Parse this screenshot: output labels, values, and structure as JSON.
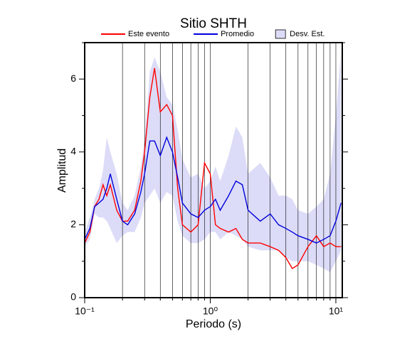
{
  "chart_data": {
    "type": "line",
    "title": "Sitio SHTH",
    "x_label": "Periodo (s)",
    "y_label": "Amplitud",
    "x_scale": "log",
    "xlim": [
      0.1,
      11.25
    ],
    "ylim": [
      0,
      7
    ],
    "xticks": [
      {
        "value": 0.1,
        "label": "10⁻¹"
      },
      {
        "value": 1,
        "label": "10⁰"
      },
      {
        "value": 10,
        "label": "10¹"
      }
    ],
    "xminorticks": [
      0.2,
      0.3,
      0.4,
      0.5,
      0.6,
      0.7,
      0.8,
      0.9,
      2,
      3,
      4,
      5,
      6,
      7,
      8,
      9
    ],
    "yticks": [
      0,
      2,
      4,
      6
    ],
    "yminorticks": [
      1,
      3,
      5,
      7
    ],
    "grid": true,
    "x": [
      0.1,
      0.11,
      0.12,
      0.13,
      0.14,
      0.15,
      0.16,
      0.18,
      0.2,
      0.22,
      0.25,
      0.28,
      0.3,
      0.33,
      0.36,
      0.4,
      0.45,
      0.5,
      0.55,
      0.6,
      0.7,
      0.8,
      0.9,
      1.0,
      1.1,
      1.2,
      1.4,
      1.6,
      1.8,
      2.0,
      2.5,
      3,
      3.5,
      4,
      4.5,
      5,
      6,
      7,
      8,
      9,
      10,
      11
    ],
    "band": {
      "name": "Desv. Est.",
      "color": "#dcdcf8",
      "upper": [
        1.8,
        2.2,
        2.7,
        3.0,
        3.5,
        4.4,
        4.0,
        3.4,
        2.6,
        2.4,
        2.8,
        3.6,
        4.3,
        6.2,
        6.6,
        6.2,
        5.5,
        5.3,
        4.6,
        3.8,
        3.3,
        3.4,
        3.0,
        3.2,
        3.6,
        3.2,
        3.9,
        4.7,
        4.4,
        3.4,
        3.7,
        3.3,
        2.8,
        2.8,
        2.7,
        2.4,
        2.3,
        2.5,
        2.7,
        3.4,
        5.0,
        6.8
      ],
      "lower": [
        1.4,
        1.6,
        2.3,
        2.2,
        2.2,
        2.1,
        1.9,
        1.5,
        1.7,
        1.8,
        1.8,
        2.2,
        2.6,
        2.8,
        3.0,
        2.6,
        2.9,
        2.8,
        2.1,
        1.7,
        1.5,
        1.5,
        1.6,
        1.8,
        1.8,
        1.6,
        1.8,
        1.7,
        1.6,
        1.4,
        1.3,
        1.3,
        1.3,
        1.1,
        1.0,
        1.0,
        1.0,
        0.9,
        0.8,
        0.7,
        1.0,
        1.3
      ]
    },
    "series": [
      {
        "name": "Este evento",
        "color": "#ff0000",
        "values": [
          1.5,
          1.8,
          2.5,
          2.7,
          3.1,
          2.8,
          3.1,
          2.4,
          2.1,
          2.1,
          2.4,
          3.2,
          4.0,
          5.5,
          6.3,
          5.1,
          5.3,
          5.0,
          3.0,
          2.0,
          1.8,
          2.0,
          3.7,
          3.4,
          2.0,
          1.9,
          1.8,
          1.9,
          1.6,
          1.5,
          1.5,
          1.4,
          1.3,
          1.1,
          0.8,
          0.9,
          1.4,
          1.7,
          1.4,
          1.5,
          1.4,
          1.4
        ]
      },
      {
        "name": "Promedio",
        "color": "#0000dd",
        "values": [
          1.6,
          1.9,
          2.5,
          2.6,
          2.7,
          3.0,
          3.4,
          2.7,
          2.1,
          2.0,
          2.3,
          2.9,
          3.4,
          4.3,
          4.3,
          3.9,
          4.4,
          4.0,
          3.3,
          2.6,
          2.3,
          2.2,
          2.4,
          2.5,
          2.7,
          2.4,
          2.8,
          3.2,
          3.1,
          2.4,
          2.1,
          2.3,
          2.0,
          1.9,
          1.8,
          1.7,
          1.6,
          1.5,
          1.6,
          1.7,
          2.1,
          2.6
        ]
      }
    ]
  }
}
